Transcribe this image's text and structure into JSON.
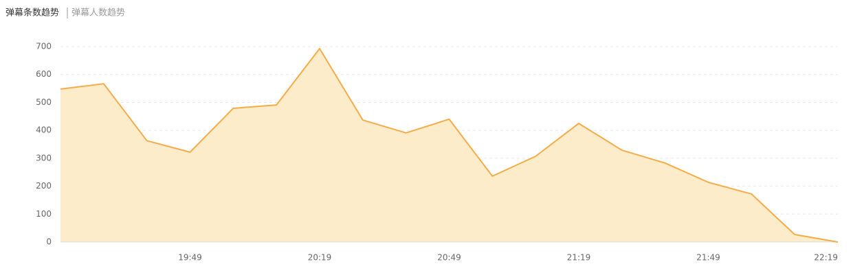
{
  "tabs": [
    "弹幕条数趋势",
    "弹幕人数趋势"
  ],
  "chart_data": {
    "type": "area",
    "categories": [
      null,
      null,
      null,
      "19:49",
      null,
      null,
      "20:19",
      null,
      null,
      "20:49",
      null,
      null,
      "21:19",
      null,
      null,
      "21:49",
      null,
      null,
      "22:19"
    ],
    "values": [
      548,
      567,
      363,
      322,
      479,
      491,
      693,
      437,
      391,
      440,
      236,
      307,
      425,
      329,
      283,
      214,
      172,
      27,
      0
    ],
    "color": "#f5ab48",
    "fill": "#fcecc9",
    "ylim": [
      0,
      700
    ],
    "yticks": [
      0,
      100,
      200,
      300,
      400,
      500,
      600,
      700
    ],
    "grid": true
  }
}
